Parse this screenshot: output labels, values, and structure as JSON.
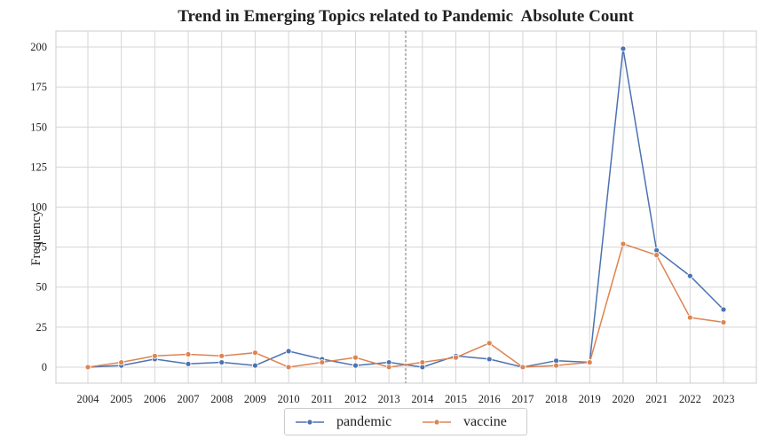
{
  "chart_data": {
    "type": "line",
    "title": "Trend in Emerging Topics related to Pandemic  Absolute Count",
    "xlabel": "",
    "ylabel": "Frequency",
    "categories": [
      "2004",
      "2005",
      "2006",
      "2007",
      "2008",
      "2009",
      "2010",
      "2011",
      "2012",
      "2013",
      "2014",
      "2015",
      "2016",
      "2017",
      "2018",
      "2019",
      "2020",
      "2021",
      "2022",
      "2023"
    ],
    "ylim": [
      -10,
      210
    ],
    "yticks": [
      0,
      25,
      50,
      75,
      100,
      125,
      150,
      175,
      200
    ],
    "grid": true,
    "reference_line": {
      "style": "dashed",
      "x": 2013.5
    },
    "legend_position": "bottom-center",
    "series": [
      {
        "name": "pandemic",
        "color": "#4c72b0",
        "values": [
          0,
          1,
          5,
          2,
          3,
          1,
          10,
          5,
          1,
          3,
          0,
          7,
          5,
          0,
          4,
          3,
          199,
          73,
          57,
          36
        ]
      },
      {
        "name": "vaccine",
        "color": "#dd8452",
        "values": [
          0,
          3,
          7,
          8,
          7,
          9,
          0,
          3,
          6,
          0,
          3,
          6,
          15,
          0,
          1,
          3,
          77,
          70,
          31,
          28
        ]
      }
    ]
  }
}
